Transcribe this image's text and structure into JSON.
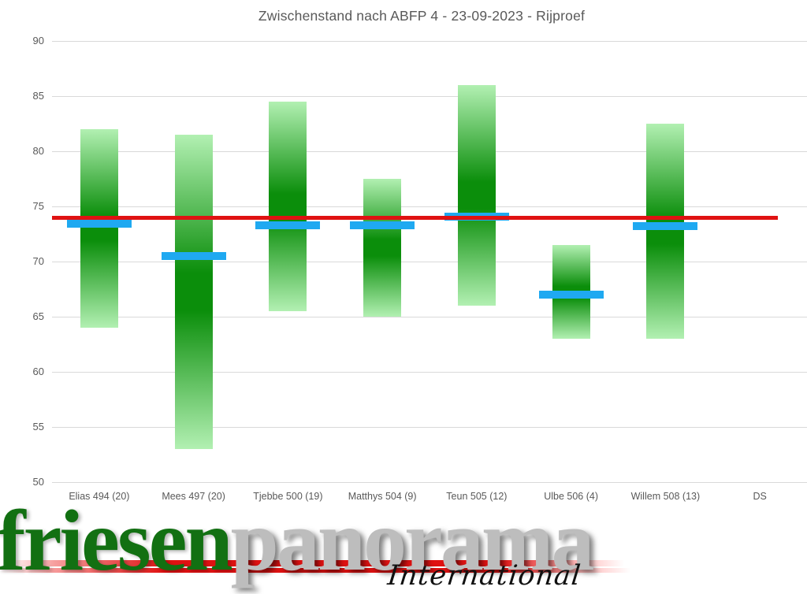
{
  "title": "Zwischenstand nach ABFP 4 - 23-09-2023 - Rijproef",
  "chart_data": {
    "type": "bar",
    "subtype": "floating range bars with horizontal tick markers and average line",
    "title": "Zwischenstand nach ABFP 4 - 23-09-2023 - Rijproef",
    "categories": [
      "Elias 494 (20)",
      "Mees 497 (20)",
      "Tjebbe 500 (19)",
      "Matthys 504 (9)",
      "Teun 505 (12)",
      "Ulbe 506 (4)",
      "Willem 508 (13)",
      "DS"
    ],
    "series": [
      {
        "name": "score range",
        "type": "floating-bar",
        "low": [
          64,
          53,
          65.5,
          65,
          66,
          63,
          63,
          null
        ],
        "high": [
          82,
          81.5,
          84.5,
          77.5,
          86,
          71.5,
          82.5,
          null
        ]
      },
      {
        "name": "current score marker",
        "type": "tick-marker",
        "values": [
          73.4,
          70.5,
          73.3,
          73.3,
          74.1,
          67,
          73.2,
          null
        ]
      },
      {
        "name": "DS average line",
        "type": "hline",
        "value": 74
      }
    ],
    "ylim": [
      50,
      90
    ],
    "yticks": [
      90,
      85,
      80,
      75,
      70,
      65,
      60,
      55,
      50
    ],
    "xlabel": "",
    "ylabel": "",
    "grid": true,
    "legend": "none"
  },
  "colors": {
    "bar_gradient_light": "#b2f0b2",
    "bar_gradient_dark": "#0b8e0b",
    "marker_blue": "#1fa9f1",
    "average_red": "#e01212",
    "gridline": "#d9d9d9",
    "axis_text": "#595959",
    "logo_green": "#127012",
    "logo_silver": "#bdbdbd",
    "logo_script_black": "#111111"
  },
  "watermark": {
    "part1": "friesen",
    "part2": "panorama",
    "part3": "International"
  }
}
